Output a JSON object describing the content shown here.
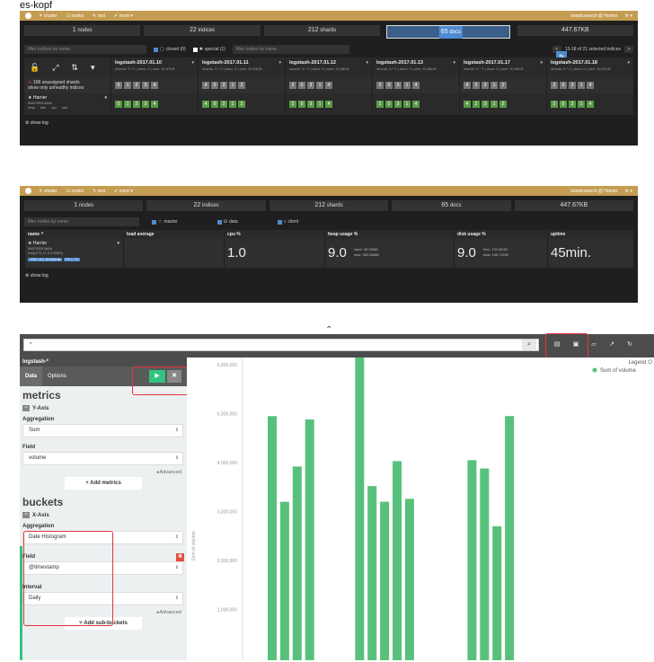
{
  "caption": "es-kopf",
  "kopf_nav": {
    "cluster": "cluster",
    "nodes": "nodes",
    "rest": "rest",
    "more": "more",
    "right": "elasticsearch @ Harrier"
  },
  "stats": {
    "nodes": "1",
    "nodes_label": "nodes",
    "indices": "22",
    "indices_label": "indices",
    "shards": "212",
    "shards_label": "shards",
    "docs": "65",
    "docs_label": "docs",
    "size": "447.67KB"
  },
  "cluster_panel": {
    "filter_indices_placeholder": "filter indices by name",
    "closed_label": "closed (0)",
    "special_label": "special (1)",
    "filter_nodes_placeholder": "filter nodes by name",
    "pager_text": "13-18 of 21 selected indices",
    "prev": "<",
    "next": ">",
    "unassigned": "108 unassigned shards",
    "unhealthy": "show only unhealthy indices",
    "node_name": "Harrier",
    "node_id": "566793513d5a",
    "node_mini": [
      "heap",
      "disk",
      "cpu",
      "load"
    ],
    "indices": [
      {
        "name": "logstash-2017.01.10",
        "sub": "shards: 5 * 2 | docs: 5 | size: 30.67KB",
        "shards": [
          "0",
          "1",
          "2",
          "3",
          "4"
        ]
      },
      {
        "name": "logstash-2017.01.11",
        "sub": "shards: 5 * 2 | docs: 5 | size: 30.83KB",
        "shards": [
          "4",
          "0",
          "3",
          "1",
          "2"
        ]
      },
      {
        "name": "logstash-2017.01.12",
        "sub": "shards: 5 * 2 | docs: 5 | size: 30.88KB",
        "shards": [
          "2",
          "0",
          "3",
          "1",
          "4"
        ]
      },
      {
        "name": "logstash-2017.01.13",
        "sub": "shards: 5 * 2 | docs: 5 | size: 30.86KB",
        "shards": [
          "2",
          "0",
          "3",
          "1",
          "4"
        ]
      },
      {
        "name": "logstash-2017.01.17",
        "sub": "shards: 5 * 2 | docs: 5 | size: 30.86KB",
        "shards": [
          "4",
          "2",
          "3",
          "1",
          "2"
        ]
      },
      {
        "name": "logstash-2017.01.18",
        "sub": "shards: 5 * 2 | docs: 5 | size: 30.67KB",
        "shards": [
          "2",
          "0",
          "3",
          "1",
          "4"
        ]
      }
    ],
    "show_log": "show log"
  },
  "nodes_panel": {
    "filter_placeholder": "filter nodes by name",
    "master_label": "master",
    "data_label": "data",
    "client_label": "client",
    "headers": [
      "name ^",
      "load average",
      "cpu %",
      "heap usage %",
      "disk usage %",
      "uptime"
    ],
    "node_name": "Harrier",
    "node_id": "566793513d5a",
    "node_ip": "inet[/172.17.0.3:9300]",
    "tags": [
      "JVM 1.8.0_66-internal",
      "ES 1.7.6"
    ],
    "cpu": "1.0",
    "heap": "9.0",
    "heap_used": "used: 95.09MB",
    "heap_max": "max: 989.88MB",
    "disk": "9.0",
    "disk_free": "free: 178.06GB",
    "disk_total": "total: 196.73GB",
    "uptime": "45min.",
    "show_log": "show log"
  },
  "kibana": {
    "query": "*",
    "index_pattern": "logstash-*",
    "tab_data": "Data",
    "tab_options": "Options",
    "metrics_title": "metrics",
    "yaxis_label": "Y-Axis",
    "aggregation_label": "Aggregation",
    "agg_value": "Sum",
    "field_label": "Field",
    "field_value": "volume",
    "advanced": "Advanced",
    "add_metrics": "+ Add metrics",
    "buckets_title": "buckets",
    "xaxis_label": "X-Axis",
    "bucket_agg_label": "Aggregation",
    "bucket_agg_value": "Date Histogram",
    "bucket_field_label": "Field",
    "bucket_field_value": "@timestamp",
    "interval_label": "Interval",
    "interval_value": "Daily",
    "advanced2": "Advanced",
    "add_sub_buckets": "Add sub-buckets",
    "legend_title": "Legend",
    "legend_series": "Sum of volume"
  },
  "chart_data": {
    "type": "bar",
    "ylabel": "Sum of volume",
    "yticks": [
      "1,000,000",
      "2,000,000",
      "3,000,000",
      "4,000,000",
      "5,000,000",
      "6,000,000"
    ],
    "ylim": [
      0,
      7000000
    ],
    "values": [
      4950000,
      3200000,
      3920000,
      4880000,
      null,
      null,
      null,
      6350000,
      3520000,
      3200000,
      4030000,
      3260000,
      null,
      null,
      null,
      null,
      4050000,
      3880000,
      2700000,
      4950000
    ],
    "color": "#57c17b"
  }
}
